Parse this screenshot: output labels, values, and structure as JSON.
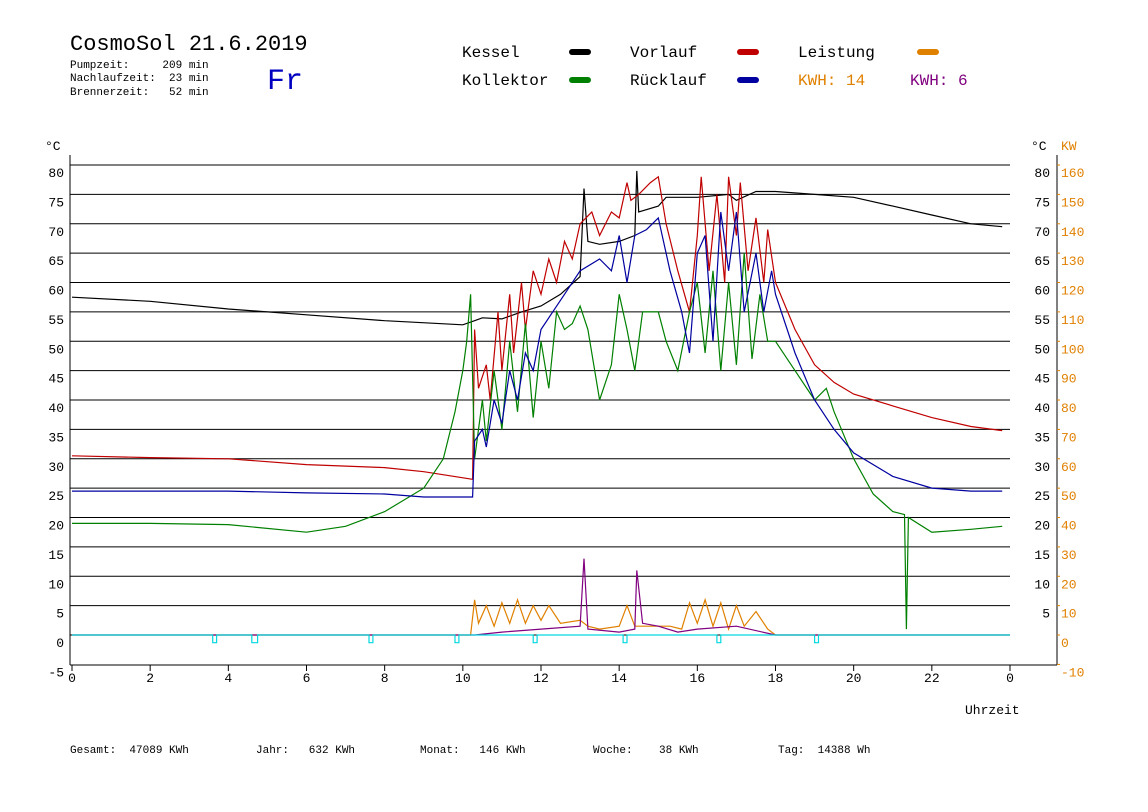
{
  "header": {
    "title": "CosmoSol 21.6.2019",
    "day": "Fr",
    "stats": [
      "Pumpzeit:     209 min",
      "Nachlaufzeit:  23 min",
      "Brennerzeit:   52 min"
    ]
  },
  "footer": [
    "Gesamt:  47089 KWh",
    "Jahr:   632 KWh",
    "Monat:   146 KWh",
    "Woche:    38 KWh",
    "Tag:  14388 Wh"
  ],
  "chart_data": {
    "type": "line",
    "y_unit": "°C",
    "y2_unit": "KW",
    "xlabel": "Uhrzeit",
    "xlim": [
      0,
      24
    ],
    "xticks": [
      0,
      2,
      4,
      6,
      8,
      10,
      12,
      14,
      16,
      18,
      20,
      22,
      {
        "value": 24,
        "label": "0"
      }
    ],
    "ylim": [
      -5,
      80
    ],
    "yticks": [
      -5,
      0,
      5,
      10,
      15,
      20,
      25,
      30,
      35,
      40,
      45,
      50,
      55,
      60,
      65,
      70,
      75,
      80
    ],
    "y2lim": [
      -10,
      160
    ],
    "y2ticks": [
      -10,
      0,
      10,
      20,
      30,
      40,
      50,
      60,
      70,
      80,
      90,
      100,
      110,
      120,
      130,
      140,
      150,
      160
    ],
    "y2_color": "#e08000",
    "grid": true,
    "kwh_labels": [
      {
        "text": "KWH: 14",
        "color": "#e08000"
      },
      {
        "text": "KWH: 6",
        "color": "#800080"
      }
    ],
    "series": [
      {
        "name": "Kessel",
        "color": "#000000",
        "x": [
          0,
          2,
          4,
          6,
          8,
          10,
          10.3,
          10.5,
          11,
          11.5,
          12,
          12.5,
          13,
          13.1,
          13.2,
          13.5,
          14,
          14.4,
          14.45,
          14.5,
          15,
          15.2,
          16,
          16.8,
          17,
          17.5,
          18,
          19,
          20,
          21,
          22,
          23,
          23.8
        ],
        "values": [
          57.5,
          56.8,
          55.5,
          54.5,
          53.5,
          52.8,
          53.5,
          54,
          53.8,
          55,
          56,
          58,
          61,
          76,
          67,
          66.5,
          67,
          68,
          79,
          72,
          73,
          74.5,
          74.5,
          75,
          74,
          75.5,
          75.5,
          75,
          74.5,
          73,
          71.5,
          70,
          69.5
        ]
      },
      {
        "name": "Vorlauf",
        "color": "#c00000",
        "x": [
          0,
          2,
          4,
          6,
          8,
          9,
          10.25,
          10.3,
          10.4,
          10.6,
          10.7,
          10.9,
          11,
          11.2,
          11.3,
          11.5,
          11.6,
          11.8,
          12,
          12.2,
          12.4,
          12.6,
          12.8,
          13,
          13.3,
          13.5,
          13.8,
          14,
          14.2,
          14.3,
          14.5,
          14.8,
          15,
          15.2,
          15.5,
          15.8,
          16,
          16.1,
          16.3,
          16.5,
          16.7,
          16.8,
          17,
          17.1,
          17.3,
          17.5,
          17.7,
          17.8,
          18,
          18.5,
          19,
          19.5,
          20,
          21,
          22,
          23,
          23.8
        ],
        "values": [
          30.5,
          30.2,
          30,
          29,
          28.5,
          27.8,
          26.5,
          52,
          42,
          46,
          40,
          55,
          45,
          58,
          48,
          60,
          52,
          62,
          58,
          64,
          60,
          67,
          64,
          70,
          72,
          68,
          72,
          71,
          77,
          74,
          75,
          77,
          78,
          70,
          62,
          55,
          68,
          78,
          62,
          75,
          60,
          78,
          68,
          77,
          62,
          71,
          60,
          69,
          60,
          52,
          46,
          43,
          41,
          39,
          37,
          35.5,
          34.8
        ]
      },
      {
        "name": "Leistung",
        "color": "#e08000",
        "axis": "y2",
        "x": [
          0,
          10.2,
          10.3,
          10.4,
          10.6,
          10.8,
          11,
          11.2,
          11.4,
          11.6,
          11.8,
          12,
          12.2,
          12.5,
          13,
          13.2,
          13.5,
          14,
          14.2,
          14.4,
          15,
          15.3,
          15.6,
          15.8,
          16,
          16.2,
          16.4,
          16.6,
          16.8,
          17,
          17.2,
          17.5,
          17.8,
          18,
          24
        ],
        "values": [
          0,
          0,
          12,
          4,
          10,
          3,
          11,
          4,
          12,
          4,
          10,
          5,
          10,
          4,
          5,
          3,
          2,
          3,
          10,
          3,
          3,
          3,
          2,
          11,
          4,
          12,
          3,
          11,
          2,
          10,
          3,
          8,
          2,
          0,
          0
        ]
      },
      {
        "name": "Kollektor",
        "color": "#008000",
        "x": [
          0,
          2,
          4,
          6,
          7,
          8,
          9,
          9.5,
          9.8,
          10,
          10.1,
          10.2,
          10.3,
          10.5,
          10.6,
          10.8,
          11,
          11.2,
          11.4,
          11.6,
          11.8,
          12,
          12.2,
          12.4,
          12.6,
          12.8,
          13,
          13.2,
          13.5,
          13.8,
          14,
          14.2,
          14.4,
          14.6,
          15,
          15.2,
          15.5,
          15.8,
          16,
          16.2,
          16.4,
          16.6,
          16.8,
          17,
          17.2,
          17.4,
          17.6,
          17.8,
          18,
          18.5,
          19,
          19.3,
          19.5,
          20,
          20.5,
          21,
          21.3,
          21.35,
          21.4,
          22,
          23,
          23.8
        ],
        "values": [
          19,
          19,
          18.8,
          17.5,
          18.5,
          21,
          25,
          30,
          38,
          45,
          50,
          58,
          30,
          40,
          33,
          45,
          35,
          50,
          38,
          53,
          37,
          50,
          42,
          55,
          52,
          53,
          56,
          52,
          40,
          46,
          58,
          52,
          45,
          55,
          55,
          50,
          45,
          55,
          60,
          48,
          62,
          45,
          60,
          46,
          65,
          47,
          58,
          50,
          50,
          45,
          40,
          42,
          38,
          30,
          24,
          21,
          20.5,
          1,
          20,
          17.5,
          18,
          18.5
        ]
      },
      {
        "name": "Rücklauf",
        "color": "#0000a0",
        "x": [
          0,
          4,
          6,
          8,
          9,
          10.25,
          10.3,
          10.5,
          10.6,
          10.8,
          11,
          11.2,
          11.4,
          11.6,
          11.8,
          12,
          12.3,
          12.6,
          13,
          13.5,
          13.8,
          14,
          14.2,
          14.4,
          14.7,
          15,
          15.3,
          15.6,
          15.8,
          16,
          16.2,
          16.4,
          16.6,
          16.8,
          17,
          17.2,
          17.5,
          17.7,
          17.9,
          18,
          18.5,
          19,
          19.5,
          20,
          21,
          22,
          23,
          23.8
        ],
        "values": [
          24.5,
          24.5,
          24.2,
          24,
          23.5,
          23.5,
          33,
          35,
          32,
          40,
          36,
          45,
          40,
          48,
          45,
          52,
          55,
          58,
          62,
          64,
          62,
          68,
          60,
          68,
          69,
          71,
          62,
          55,
          48,
          65,
          68,
          50,
          72,
          62,
          72,
          55,
          65,
          55,
          62,
          58,
          48,
          40,
          35,
          31,
          27,
          25,
          24.5,
          24.5
        ]
      },
      {
        "color": "#800080",
        "axis": "y2",
        "x": [
          0,
          10.3,
          11,
          12,
          13,
          13.1,
          13.2,
          14,
          14.4,
          14.45,
          14.6,
          15,
          15.5,
          16,
          17,
          18,
          24
        ],
        "values": [
          0,
          0,
          1,
          2,
          3,
          26,
          2,
          1,
          2,
          22,
          4,
          3,
          1,
          2,
          3,
          0,
          0
        ]
      },
      {
        "color": "#00d8e0",
        "x": [
          0,
          3.6,
          3.6,
          3.7,
          3.7,
          4.6,
          4.6,
          4.75,
          4.75,
          7.6,
          7.6,
          7.7,
          7.7,
          9.8,
          9.8,
          9.9,
          9.9,
          11.8,
          11.8,
          11.9,
          11.9,
          14.1,
          14.1,
          14.2,
          14.2,
          16.5,
          16.5,
          16.6,
          16.6,
          19,
          19,
          19.1,
          19.1,
          24
        ],
        "values": [
          0,
          0,
          -1.3,
          -1.3,
          0,
          0,
          -1.3,
          -1.3,
          0,
          0,
          -1.3,
          -1.3,
          0,
          0,
          -1.3,
          -1.3,
          0,
          0,
          -1.3,
          -1.3,
          0,
          0,
          -1.3,
          -1.3,
          0,
          0,
          -1.3,
          -1.3,
          0,
          0,
          -1.3,
          -1.3,
          0,
          0
        ]
      }
    ]
  }
}
